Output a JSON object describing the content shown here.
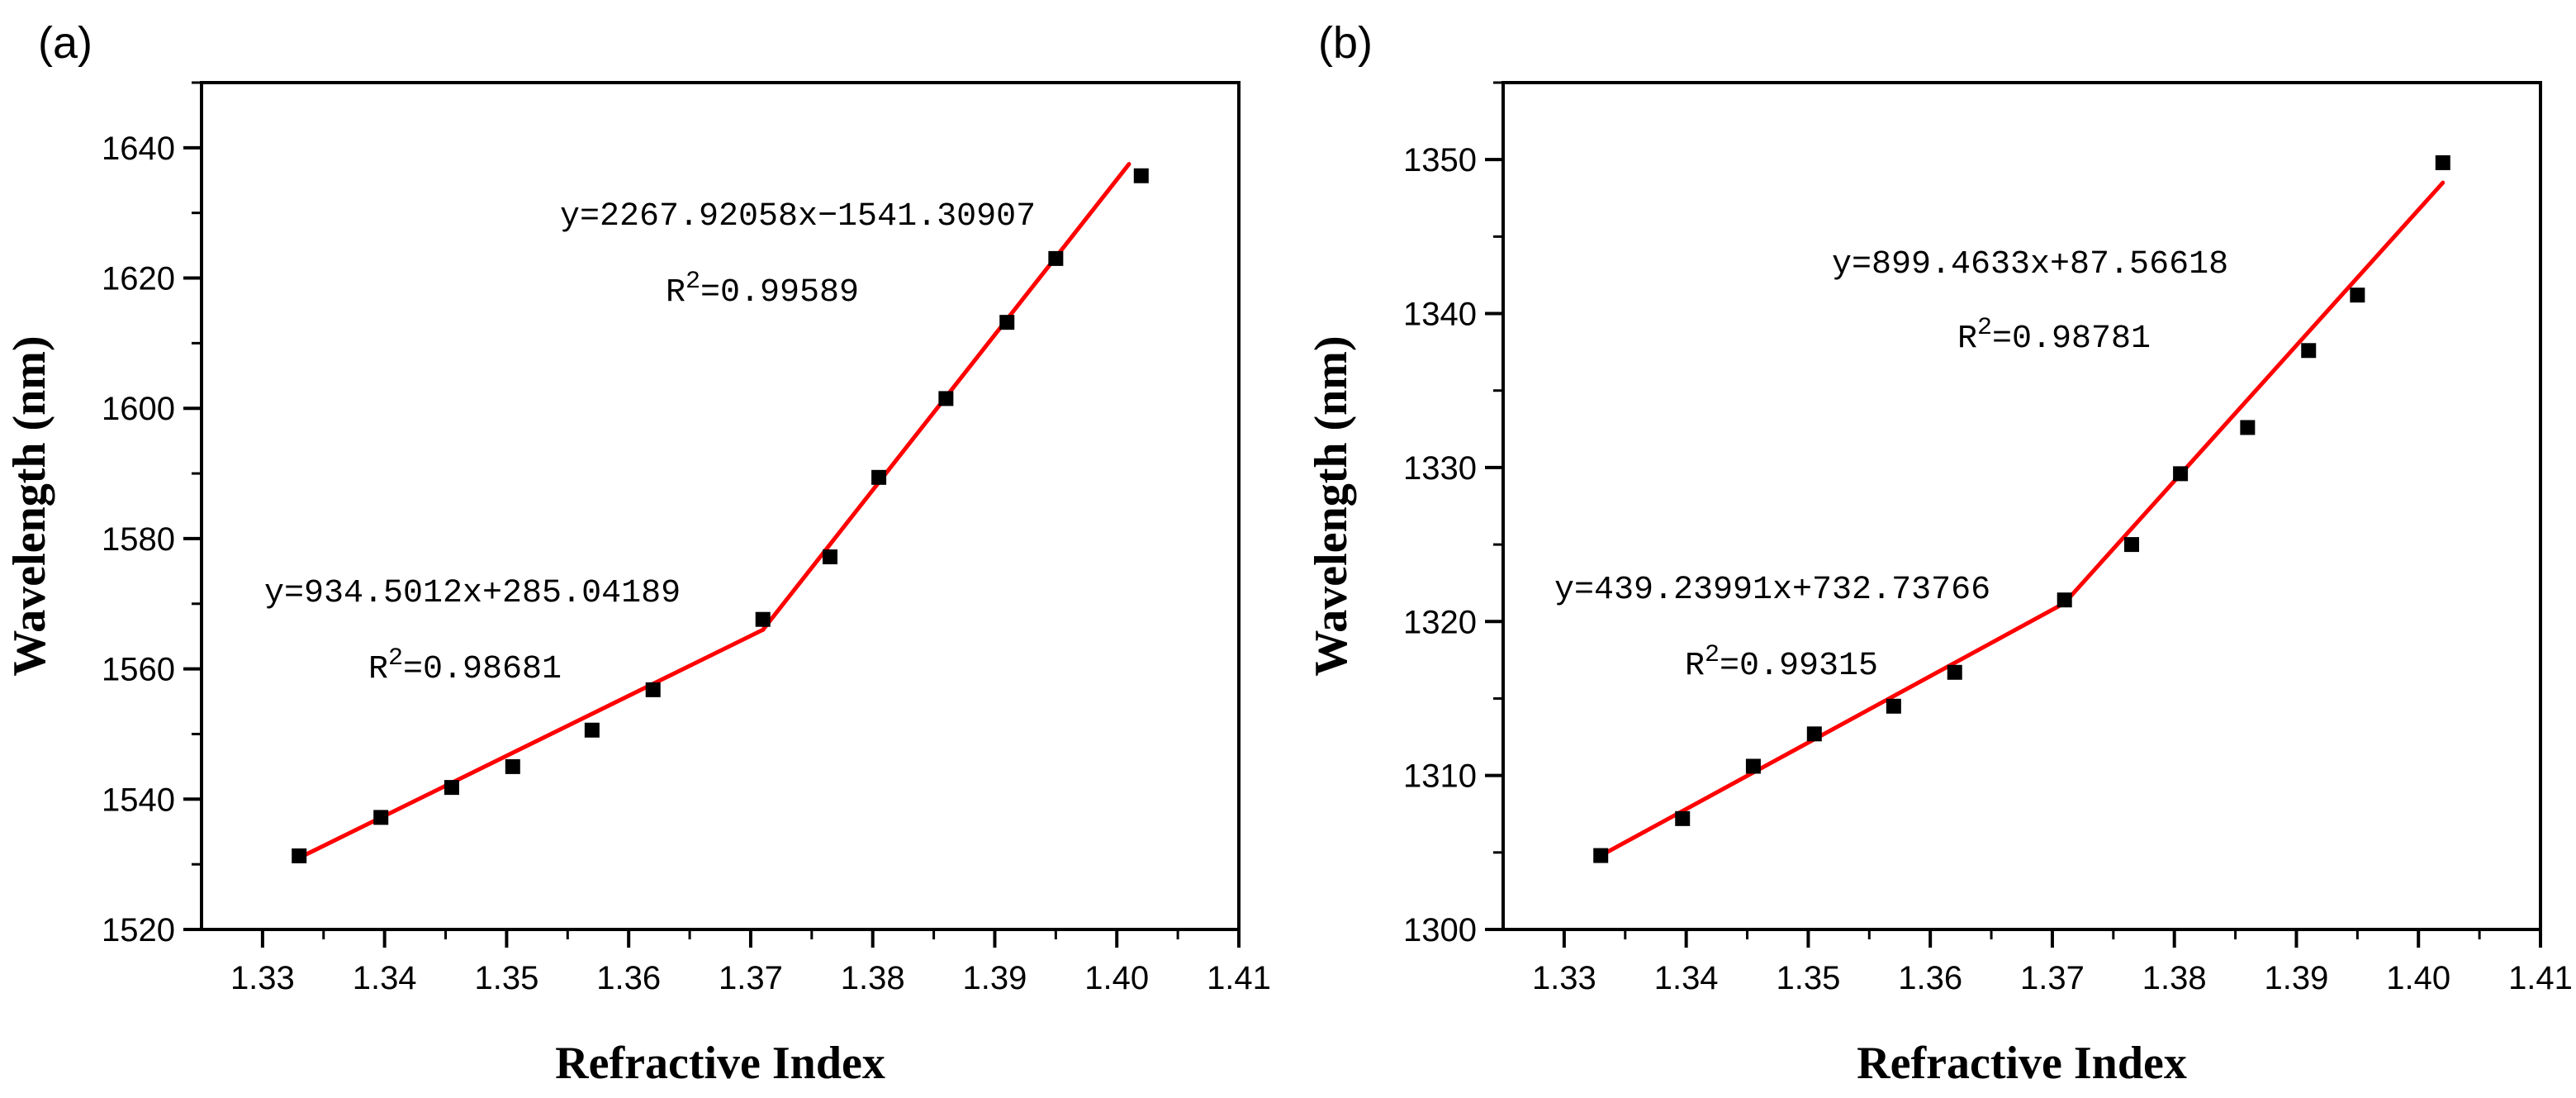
{
  "chart_data": [
    {
      "type": "scatter",
      "panel_label": "(a)",
      "xlabel": "Refractive Index",
      "ylabel": "Wavelength (nm)",
      "xlim": [
        1.325,
        1.41
      ],
      "ylim": [
        1520,
        1650
      ],
      "xticks": [
        "1.33",
        "1.34",
        "1.35",
        "1.36",
        "1.37",
        "1.38",
        "1.39",
        "1.40",
        "1.41"
      ],
      "yticks": [
        "1520",
        "1540",
        "1560",
        "1580",
        "1600",
        "1620",
        "1640"
      ],
      "grid": false,
      "points": [
        {
          "x": 1.333,
          "y": 1531.3
        },
        {
          "x": 1.3397,
          "y": 1537.2
        },
        {
          "x": 1.3455,
          "y": 1541.8
        },
        {
          "x": 1.3505,
          "y": 1545.0
        },
        {
          "x": 1.357,
          "y": 1550.6
        },
        {
          "x": 1.362,
          "y": 1556.8
        },
        {
          "x": 1.371,
          "y": 1567.6
        },
        {
          "x": 1.3765,
          "y": 1577.2
        },
        {
          "x": 1.3805,
          "y": 1589.4
        },
        {
          "x": 1.386,
          "y": 1601.5
        },
        {
          "x": 1.391,
          "y": 1613.2
        },
        {
          "x": 1.395,
          "y": 1623.0
        },
        {
          "x": 1.402,
          "y": 1635.7
        }
      ],
      "fits": [
        {
          "x_range": [
            1.333,
            1.371
          ],
          "y_range": [
            1531,
            1566
          ],
          "equation": "y=934.5012x+285.04189",
          "r2_prefix": "R",
          "r2_sup": "2",
          "r2_value": "=0.98681"
        },
        {
          "x_range": [
            1.371,
            1.401
          ],
          "y_range": [
            1566,
            1637.5
          ],
          "equation": "y=2267.92058x−1541.30907",
          "r2_prefix": "R",
          "r2_sup": "2",
          "r2_value": "=0.99589"
        }
      ],
      "marker_color": "#000000",
      "fit_color": "#ff0000"
    },
    {
      "type": "scatter",
      "panel_label": "(b)",
      "xlabel": "Refractive Index",
      "ylabel": "Wavelength (nm)",
      "xlim": [
        1.325,
        1.41
      ],
      "ylim": [
        1300,
        1355
      ],
      "xticks": [
        "1.33",
        "1.34",
        "1.35",
        "1.36",
        "1.37",
        "1.38",
        "1.39",
        "1.40",
        "1.41"
      ],
      "yticks": [
        "1300",
        "1310",
        "1320",
        "1330",
        "1340",
        "1350"
      ],
      "grid": false,
      "points": [
        {
          "x": 1.333,
          "y": 1304.8
        },
        {
          "x": 1.3397,
          "y": 1307.2
        },
        {
          "x": 1.3455,
          "y": 1310.6
        },
        {
          "x": 1.3505,
          "y": 1312.7
        },
        {
          "x": 1.357,
          "y": 1314.5
        },
        {
          "x": 1.362,
          "y": 1316.7
        },
        {
          "x": 1.371,
          "y": 1321.4
        },
        {
          "x": 1.3765,
          "y": 1325.0
        },
        {
          "x": 1.3805,
          "y": 1329.6
        },
        {
          "x": 1.386,
          "y": 1332.6
        },
        {
          "x": 1.391,
          "y": 1337.6
        },
        {
          "x": 1.395,
          "y": 1341.2
        },
        {
          "x": 1.402,
          "y": 1349.8
        }
      ],
      "fits": [
        {
          "x_range": [
            1.333,
            1.371
          ],
          "y_range": [
            1304.8,
            1321.2
          ],
          "equation": "y=439.23991x+732.73766",
          "r2_prefix": "R",
          "r2_sup": "2",
          "r2_value": "=0.99315"
        },
        {
          "x_range": [
            1.371,
            1.402
          ],
          "y_range": [
            1321.2,
            1348.5
          ],
          "equation": "y=899.4633x+87.56618",
          "r2_prefix": "R",
          "r2_sup": "2",
          "r2_value": "=0.98781"
        }
      ],
      "marker_color": "#000000",
      "fit_color": "#ff0000"
    }
  ]
}
